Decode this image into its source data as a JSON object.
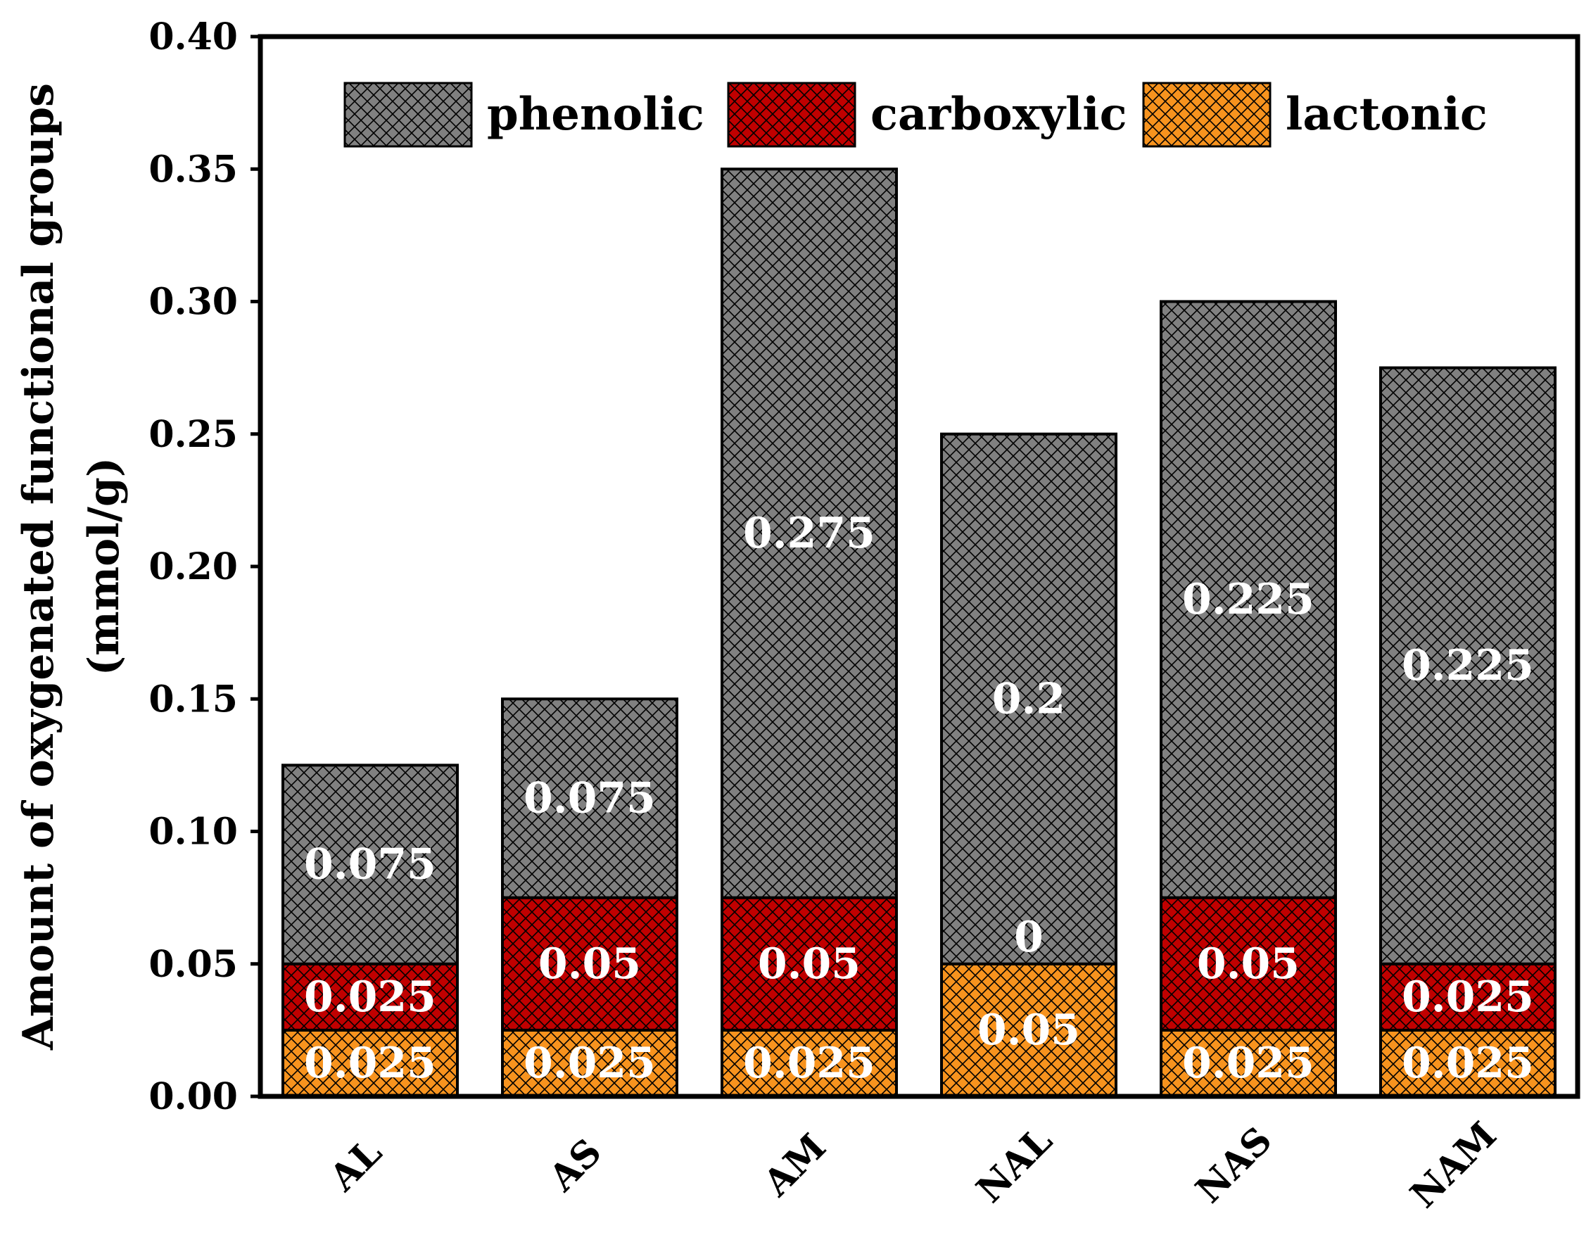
{
  "chart_data": {
    "type": "bar",
    "stacked": true,
    "title": "",
    "xlabel": "",
    "ylabel_lines": [
      "Amount of oxygenated functional groups",
      "(mmol/g)"
    ],
    "ylim": [
      0,
      0.4
    ],
    "yticks": [
      "0.00",
      "0.05",
      "0.10",
      "0.15",
      "0.20",
      "0.25",
      "0.30",
      "0.35",
      "0.40"
    ],
    "grid": false,
    "legend_position": "top",
    "categories": [
      "AL",
      "AS",
      "AM",
      "NAL",
      "NAS",
      "NAM"
    ],
    "series": [
      {
        "name": "lactonic",
        "color": "#f7931e",
        "values": [
          0.025,
          0.025,
          0.025,
          0.05,
          0.025,
          0.025
        ],
        "labels": [
          "0.025",
          "0.025",
          "0.025",
          "0.05",
          "0.025",
          "0.025"
        ]
      },
      {
        "name": "carboxylic",
        "color": "#c00000",
        "values": [
          0.025,
          0.05,
          0.05,
          0,
          0.05,
          0.025
        ],
        "labels": [
          "0.025",
          "0.05",
          "0.05",
          "0",
          "0.05",
          "0.025"
        ]
      },
      {
        "name": "phenolic",
        "color": "#808080",
        "values": [
          0.075,
          0.075,
          0.275,
          0.2,
          0.225,
          0.225
        ],
        "labels": [
          "0.075",
          "0.075",
          "0.275",
          "0.2",
          "0.225",
          "0.225"
        ]
      }
    ],
    "legend_order": [
      "phenolic",
      "carboxylic",
      "lactonic"
    ]
  }
}
